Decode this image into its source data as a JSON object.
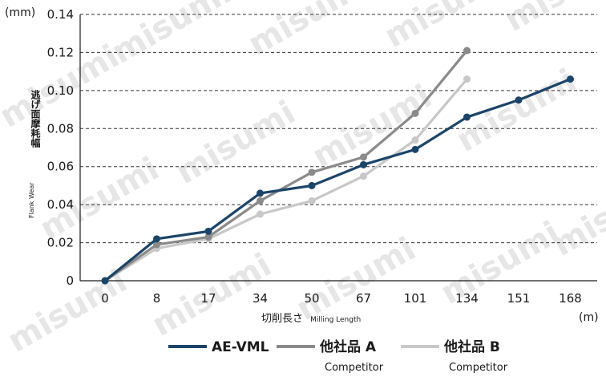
{
  "chart_data": {
    "type": "line",
    "categories": [
      "0",
      "8",
      "17",
      "34",
      "50",
      "67",
      "101",
      "134",
      "151",
      "168"
    ],
    "y_unit": "(mm)",
    "x_unit": "(m)",
    "xlabel_jp": "切削長さ",
    "xlabel_en": "Milling Length",
    "ylabel_jp": "逃げ面摩耗幅",
    "ylabel_en": "Flank Wear",
    "ylim": [
      0,
      0.14
    ],
    "yticks": [
      "0",
      "0.02",
      "0.04",
      "0.06",
      "0.08",
      "0.10",
      "0.12",
      "0.14"
    ],
    "grid": "horizontal dashed",
    "legend_position": "bottom",
    "series": [
      {
        "name": "AE-VML",
        "sub": "",
        "color": "#1b4468",
        "values": [
          0.0,
          0.022,
          0.026,
          0.046,
          0.05,
          0.061,
          0.069,
          0.086,
          0.095,
          0.106
        ]
      },
      {
        "name": "他社品 A",
        "sub": "Competitor",
        "color": "#8a8a8a",
        "values": [
          0.0,
          0.019,
          0.023,
          0.042,
          0.057,
          0.065,
          0.088,
          0.121,
          null,
          null
        ]
      },
      {
        "name": "他社品 B",
        "sub": "Competitor",
        "color": "#c8c8c8",
        "values": [
          0.0,
          0.017,
          0.022,
          0.035,
          0.042,
          0.055,
          0.074,
          0.106,
          null,
          null
        ]
      }
    ]
  },
  "watermark": "misumi"
}
